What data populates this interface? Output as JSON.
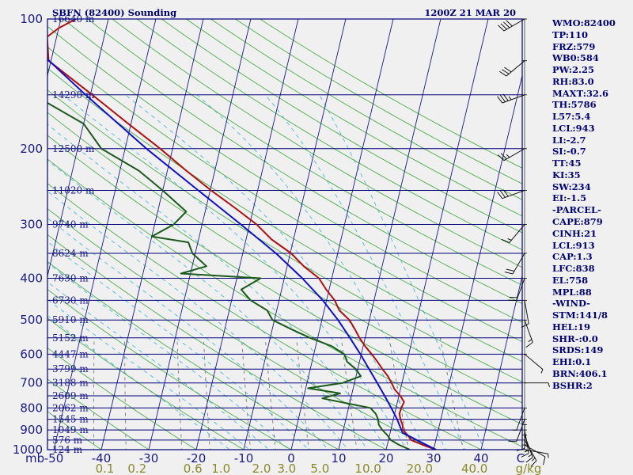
{
  "header": {
    "station": "SBFN (82400) Sounding",
    "time": "1200Z 21 MAR 20"
  },
  "colors": {
    "background": "#f0f0f0",
    "isobar": "#00007a",
    "isotherm": "#1a1a8c",
    "dry_adiabat": "#4caf4c",
    "moist_adiabat": "#4ab8e0",
    "mixing_ratio": "#7a7a7a",
    "temperature": "#b01010",
    "dewpoint": "#1a5a1a",
    "parcel": "#1010c8",
    "axis_text": "#1a1a8c",
    "mixing_text": "#8a8a2a",
    "stats_text": "#00007a"
  },
  "chart_data": {
    "type": "line",
    "title": "SBFN (82400) Sounding",
    "subtitle": "1200Z 21 MAR 20",
    "xlabel": "",
    "ylabel": "mb",
    "x_unit": "C",
    "x_ticks": [
      -50,
      -40,
      -30,
      -20,
      -10,
      0,
      10,
      20,
      30,
      40
    ],
    "y_ticks": [
      100,
      200,
      300,
      400,
      500,
      600,
      700,
      800,
      900,
      1000
    ],
    "ylim": [
      1000,
      100
    ],
    "y_scale": "log",
    "grid": true,
    "heights": [
      {
        "p": 100,
        "label": "16640 m"
      },
      {
        "p": 150,
        "label": "14290 m"
      },
      {
        "p": 200,
        "label": "12500 m"
      },
      {
        "p": 250,
        "label": "11020 m"
      },
      {
        "p": 300,
        "label": "9740 m"
      },
      {
        "p": 350,
        "label": "8624 m"
      },
      {
        "p": 400,
        "label": "7630 m"
      },
      {
        "p": 450,
        "label": "6730 m"
      },
      {
        "p": 500,
        "label": "5910 m"
      },
      {
        "p": 550,
        "label": "5152 m"
      },
      {
        "p": 600,
        "label": "4447 m"
      },
      {
        "p": 650,
        "label": "3799 m"
      },
      {
        "p": 700,
        "label": "3188 m"
      },
      {
        "p": 750,
        "label": "2609 m"
      },
      {
        "p": 800,
        "label": "2062 m"
      },
      {
        "p": 850,
        "label": "1545 m"
      },
      {
        "p": 900,
        "label": "1049 m"
      },
      {
        "p": 950,
        "label": "576 m"
      },
      {
        "p": 1000,
        "label": "124 m"
      }
    ],
    "mixing_ratio_labels": [
      "0.1",
      "0.2",
      "0.6",
      "1.0",
      "2.0",
      "3.0",
      "5.0",
      "10.0",
      "20.0",
      "40.0"
    ],
    "mixing_ratio_unit": "g/kg",
    "series": [
      {
        "key": "temperature",
        "points": [
          [
            1000,
            30.5
          ],
          [
            975,
            27.5
          ],
          [
            950,
            24.8
          ],
          [
            925,
            23.8
          ],
          [
            900,
            22.6
          ],
          [
            875,
            22.2
          ],
          [
            850,
            21.5
          ],
          [
            825,
            21.0
          ],
          [
            800,
            21.1
          ],
          [
            775,
            21.4
          ],
          [
            750,
            20.3
          ],
          [
            725,
            18.8
          ],
          [
            700,
            17.8
          ],
          [
            675,
            16.7
          ],
          [
            650,
            15.2
          ],
          [
            625,
            13.8
          ],
          [
            600,
            12.2
          ],
          [
            575,
            10.4
          ],
          [
            550,
            8.8
          ],
          [
            525,
            7.4
          ],
          [
            500,
            5.8
          ],
          [
            475,
            3.2
          ],
          [
            450,
            1.7
          ],
          [
            425,
            -0.6
          ],
          [
            400,
            -2.7
          ],
          [
            375,
            -6.5
          ],
          [
            350,
            -9.8
          ],
          [
            325,
            -14.6
          ],
          [
            300,
            -18.5
          ],
          [
            275,
            -23.8
          ],
          [
            250,
            -29.8
          ],
          [
            225,
            -36.0
          ],
          [
            200,
            -42.6
          ],
          [
            175,
            -50.6
          ],
          [
            150,
            -59.6
          ],
          [
            125,
            -70.5
          ],
          [
            110,
            -72.0
          ],
          [
            105,
            -70.0
          ],
          [
            100,
            -66.8
          ]
        ]
      },
      {
        "key": "dewpoint",
        "points": [
          [
            1000,
            25.0
          ],
          [
            975,
            22.5
          ],
          [
            950,
            20.5
          ],
          [
            925,
            19.5
          ],
          [
            900,
            18.2
          ],
          [
            875,
            17.2
          ],
          [
            850,
            16.8
          ],
          [
            825,
            16.0
          ],
          [
            800,
            14.6
          ],
          [
            775,
            8.0
          ],
          [
            760,
            4.0
          ],
          [
            740,
            7.5
          ],
          [
            720,
            0.5
          ],
          [
            700,
            7.5
          ],
          [
            675,
            11.0
          ],
          [
            650,
            9.6
          ],
          [
            625,
            7.4
          ],
          [
            600,
            6.4
          ],
          [
            575,
            3.4
          ],
          [
            550,
            -1.6
          ],
          [
            525,
            -6.0
          ],
          [
            500,
            -10.4
          ],
          [
            475,
            -12.0
          ],
          [
            450,
            -16.0
          ],
          [
            425,
            -18.5
          ],
          [
            400,
            -15.0
          ],
          [
            390,
            -32.0
          ],
          [
            375,
            -27.0
          ],
          [
            350,
            -30.6
          ],
          [
            330,
            -32.0
          ],
          [
            320,
            -40.0
          ],
          [
            300,
            -36.0
          ],
          [
            280,
            -34.0
          ],
          [
            250,
            -40.0
          ],
          [
            225,
            -46.0
          ],
          [
            200,
            -55.0
          ],
          [
            175,
            -60.0
          ],
          [
            150,
            -72.0
          ],
          [
            125,
            -79.0
          ],
          [
            100,
            -86.0
          ]
        ]
      },
      {
        "key": "parcel",
        "points": [
          [
            1000,
            30.5
          ],
          [
            950,
            26.0
          ],
          [
            913,
            22.6
          ],
          [
            850,
            20.8
          ],
          [
            800,
            19.0
          ],
          [
            750,
            17.0
          ],
          [
            700,
            14.8
          ],
          [
            650,
            12.4
          ],
          [
            600,
            9.8
          ],
          [
            550,
            6.8
          ],
          [
            500,
            3.4
          ],
          [
            450,
            -0.8
          ],
          [
            400,
            -6.2
          ],
          [
            350,
            -13.0
          ],
          [
            300,
            -21.8
          ],
          [
            250,
            -32.5
          ],
          [
            200,
            -45.5
          ],
          [
            150,
            -61.0
          ],
          [
            120,
            -72.5
          ],
          [
            110,
            -77.5
          ],
          [
            100,
            -82.0
          ]
        ]
      }
    ],
    "wind_barbs": [
      {
        "p": 1000,
        "dir": 100,
        "kt": 5
      },
      {
        "p": 975,
        "dir": 120,
        "kt": 10
      },
      {
        "p": 950,
        "dir": 150,
        "kt": 15
      },
      {
        "p": 925,
        "dir": 160,
        "kt": 15
      },
      {
        "p": 900,
        "dir": 170,
        "kt": 15
      },
      {
        "p": 875,
        "dir": 180,
        "kt": 10
      },
      {
        "p": 850,
        "dir": 200,
        "kt": 10
      },
      {
        "p": 800,
        "dir": 200,
        "kt": 5
      },
      {
        "p": 700,
        "dir": 90,
        "kt": 5
      },
      {
        "p": 600,
        "dir": 130,
        "kt": 5
      },
      {
        "p": 500,
        "dir": 160,
        "kt": 15
      },
      {
        "p": 450,
        "dir": 170,
        "kt": 10
      },
      {
        "p": 400,
        "dir": 200,
        "kt": 20
      },
      {
        "p": 350,
        "dir": 210,
        "kt": 20
      },
      {
        "p": 300,
        "dir": 220,
        "kt": 15
      },
      {
        "p": 250,
        "dir": 250,
        "kt": 30
      },
      {
        "p": 200,
        "dir": 240,
        "kt": 25
      },
      {
        "p": 150,
        "dir": 250,
        "kt": 35
      },
      {
        "p": 125,
        "dir": 230,
        "kt": 30
      },
      {
        "p": 100,
        "dir": 240,
        "kt": 40
      }
    ]
  },
  "stats": [
    "WMO:82400",
    "TP:110",
    "FRZ:579",
    "WB0:584",
    "PW:2.25",
    "RH:83.0",
    "MAXT:32.6",
    "TH:5786",
    "L57:5.4",
    "LCL:943",
    "LI:-2.7",
    "SI:-0.7",
    "TT:45",
    "KI:35",
    "SW:234",
    "EI:-1.5",
    "-PARCEL-",
    "CAPE:879",
    "CINH:21",
    "LCL:913",
    "CAP:1.3",
    "LFC:838",
    "EL:758",
    "MPL:88",
    "-WIND-",
    "STM:141/8",
    "HEL:19",
    "SHR-:0.0",
    "SRDS:149",
    "EHI:0.1",
    "BRN:406.1",
    "BSHR:2"
  ]
}
